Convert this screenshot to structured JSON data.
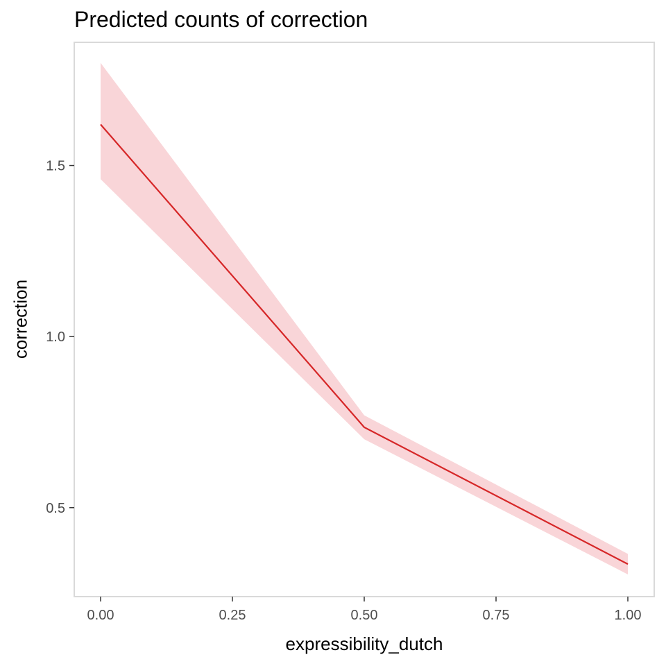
{
  "chart_data": {
    "type": "line",
    "title": "Predicted counts of correction",
    "xlabel": "expressibility_dutch",
    "ylabel": "correction",
    "x": [
      0.0,
      0.5,
      1.0
    ],
    "series": [
      {
        "values": [
          1.62,
          0.735,
          0.335
        ],
        "ci_low": [
          1.46,
          0.7,
          0.305
        ],
        "ci_high": [
          1.8,
          0.77,
          0.365
        ],
        "color": "#d62728",
        "band_color": "#f9d5d8"
      }
    ],
    "xlim": [
      -0.05,
      1.05
    ],
    "ylim": [
      0.24,
      1.86
    ],
    "x_ticks": [
      0.0,
      0.25,
      0.5,
      0.75,
      1.0
    ],
    "x_tick_labels": [
      "0.00",
      "0.25",
      "0.50",
      "0.75",
      "1.00"
    ],
    "y_ticks": [
      0.5,
      1.0,
      1.5
    ],
    "y_tick_labels": [
      "0.5",
      "1.0",
      "1.5"
    ],
    "grid": false,
    "legend": "none",
    "frame_color": "#d9d9d9",
    "tick_color": "#333333"
  }
}
